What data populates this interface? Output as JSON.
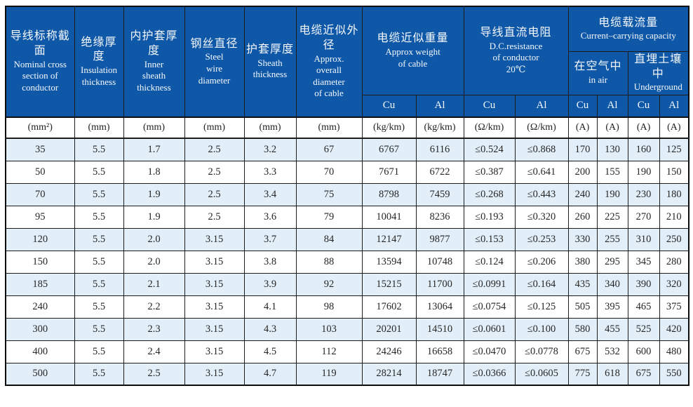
{
  "colors": {
    "header_bg": "#0F57A7",
    "header_text": "#F4F8FC",
    "stripe_bg": "#E2EFF8",
    "border": "#1c1c1c",
    "body_text": "#262626"
  },
  "table": {
    "columns": [
      {
        "zh": "导线标称截面",
        "en": "Nominal cross\nsection of\nconductor"
      },
      {
        "zh": "绝缘厚度",
        "en": "Insulation\nthickness"
      },
      {
        "zh": "内护套厚度",
        "en": "Inner\nsheath\nthickness"
      },
      {
        "zh": "钢丝直径",
        "en": "Steel\nwire\ndiameter"
      },
      {
        "zh": "护套厚度",
        "en": "Sheath\nthickness"
      },
      {
        "zh": "电缆近似外径",
        "en": "Approx.\noverall\ndiameter\nof cable"
      }
    ],
    "groups": {
      "weight": {
        "zh": "电缆近似重量",
        "en": "Approx weight\nof cable"
      },
      "resistance": {
        "zh": "导线直流电阻",
        "en": "D.C.resistance\nof conductor\n20℃"
      },
      "capacity": {
        "zh": "电缆载流量",
        "en": "Current–carrying capacity"
      },
      "in_air": {
        "zh": "在空气中",
        "en": "in air"
      },
      "underground": {
        "zh": "直埋土壤中",
        "en": "Underground"
      }
    },
    "cu_al": [
      "Cu",
      "Al",
      "Cu",
      "Al",
      "Cu",
      "Al",
      "Cu",
      "Al"
    ],
    "units": [
      "(mm²)",
      "(mm)",
      "(mm)",
      "(mm)",
      "(mm)",
      "(mm)",
      "(kg/km)",
      "(kg/km)",
      "(Ω/km)",
      "(Ω/km)",
      "(A)",
      "(A)",
      "(A)",
      "(A)"
    ],
    "rows": [
      [
        "35",
        "5.5",
        "1.7",
        "2.5",
        "3.2",
        "67",
        "6767",
        "6116",
        "≤0.524",
        "≤0.868",
        "170",
        "130",
        "160",
        "125"
      ],
      [
        "50",
        "5.5",
        "1.8",
        "2.5",
        "3.3",
        "70",
        "7671",
        "6722",
        "≤0.387",
        "≤0.641",
        "200",
        "155",
        "190",
        "150"
      ],
      [
        "70",
        "5.5",
        "1.9",
        "2.5",
        "3.4",
        "75",
        "8798",
        "7459",
        "≤0.268",
        "≤0.443",
        "240",
        "190",
        "230",
        "180"
      ],
      [
        "95",
        "5.5",
        "1.9",
        "2.5",
        "3.6",
        "79",
        "10041",
        "8236",
        "≤0.193",
        "≤0.320",
        "260",
        "225",
        "270",
        "210"
      ],
      [
        "120",
        "5.5",
        "2.0",
        "3.15",
        "3.7",
        "84",
        "12147",
        "9877",
        "≤0.153",
        "≤0.253",
        "330",
        "255",
        "310",
        "250"
      ],
      [
        "150",
        "5.5",
        "2.0",
        "3.15",
        "3.8",
        "88",
        "13594",
        "10748",
        "≤0.124",
        "≤0.206",
        "380",
        "295",
        "345",
        "280"
      ],
      [
        "185",
        "5.5",
        "2.1",
        "3.15",
        "3.9",
        "92",
        "15215",
        "11700",
        "≤0.0991",
        "≤0.164",
        "435",
        "340",
        "390",
        "320"
      ],
      [
        "240",
        "5.5",
        "2.2",
        "3.15",
        "4.1",
        "98",
        "17602",
        "13064",
        "≤0.0754",
        "≤0.125",
        "505",
        "395",
        "465",
        "375"
      ],
      [
        "300",
        "5.5",
        "2.3",
        "3.15",
        "4.3",
        "103",
        "20201",
        "14510",
        "≤0.0601",
        "≤0.100",
        "580",
        "455",
        "525",
        "420"
      ],
      [
        "400",
        "5.5",
        "2.4",
        "3.15",
        "4.5",
        "112",
        "24246",
        "16658",
        "≤0.0470",
        "≤0.0778",
        "675",
        "532",
        "600",
        "480"
      ],
      [
        "500",
        "5.5",
        "2.5",
        "3.15",
        "4.7",
        "119",
        "28214",
        "18747",
        "≤0.0366",
        "≤0.0605",
        "775",
        "618",
        "675",
        "550"
      ]
    ]
  }
}
